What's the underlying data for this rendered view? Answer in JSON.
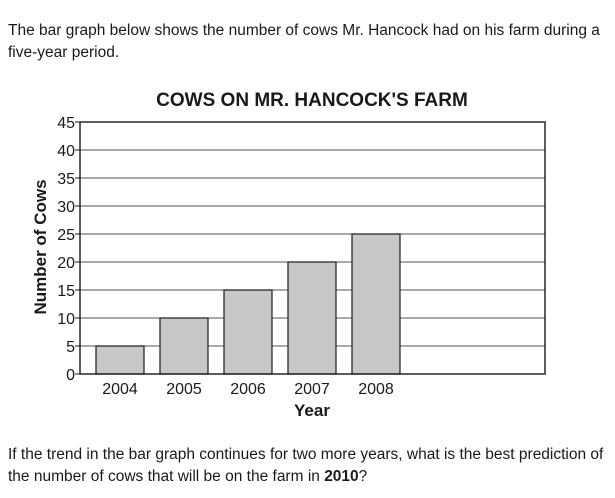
{
  "intro_text": "The bar graph below shows the number of cows Mr. Hancock had on his farm during a five-year period.",
  "question": {
    "before": "If the trend in the bar graph continues for two more years, what is the best prediction of the number of cows that will be on the farm in ",
    "emphasis": "2010",
    "after": "?"
  },
  "chart_data": {
    "type": "bar",
    "title": "COWS ON MR. HANCOCK'S FARM",
    "xlabel": "Year",
    "ylabel": "Number of Cows",
    "categories": [
      "2004",
      "2005",
      "2006",
      "2007",
      "2008"
    ],
    "values": [
      5,
      10,
      15,
      20,
      25
    ],
    "ylim": [
      0,
      45
    ],
    "yticks": [
      0,
      5,
      10,
      15,
      20,
      25,
      30,
      35,
      40,
      45
    ],
    "grid": true,
    "legend": "none",
    "colors": {
      "bar_fill": "#c8c8c8",
      "bar_stroke": "#1a1a1a",
      "grid": "#1a1a1a",
      "text": "#1a1a1a"
    }
  }
}
